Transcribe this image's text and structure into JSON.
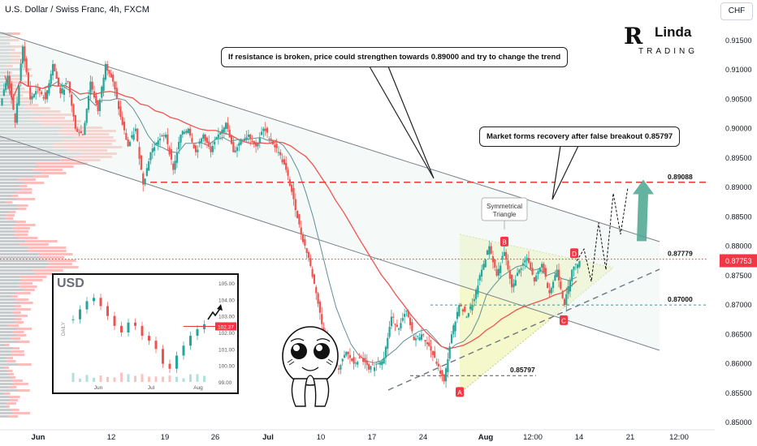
{
  "header": {
    "symbol_title": "U.S. Dollar / Swiss Franc, 4h, FXCM",
    "currency_badge": "CHF"
  },
  "logo": {
    "mark": "R",
    "word": "Linda",
    "sub": "TRADING"
  },
  "callouts": {
    "resistance": "If resistance is broken, price could strengthen towards 0.89000 and try to change the trend",
    "recovery": "Market forms recovery after false breakout 0.85797"
  },
  "annotations": {
    "triangle": [
      "Symmetrical",
      "Triangle"
    ],
    "point_a": "A",
    "point_b": "B",
    "point_c": "C",
    "point_d": "D"
  },
  "inset": {
    "title": "USD",
    "y_ticks": [
      "105.00",
      "104.00",
      "103.00",
      "102.00",
      "101.00",
      "100.00",
      "99.00"
    ],
    "x_ticks": [
      "Jun",
      "Jul",
      "Aug"
    ],
    "last_label": "102.37",
    "vertical_tag": "DAILY"
  },
  "colors": {
    "up": "#26a69a",
    "down": "#ef5350",
    "level": "#e53935",
    "ma_fast": "#5f8f96",
    "ma_slow": "#ef5350",
    "price_tag": "#f23645",
    "target_arrow": "#4aa58f",
    "triangle_fill": "#f3f7c4"
  },
  "chart_data": {
    "type": "candlestick",
    "title": "U.S. Dollar / Swiss Franc, 4h, FXCM",
    "x_ticks": [
      "Jun",
      "12",
      "19",
      "26",
      "Jul",
      "10",
      "17",
      "24",
      "Aug",
      "12:00",
      "14",
      "21",
      "12:00"
    ],
    "y_ticks": [
      "0.91500",
      "0.91000",
      "0.90500",
      "0.90000",
      "0.89500",
      "0.89000",
      "0.88500",
      "0.88000",
      "0.87500",
      "0.87000",
      "0.86500",
      "0.86000",
      "0.85500",
      "0.85000"
    ],
    "ylim": [
      0.85,
      0.918
    ],
    "current_price": "0.87753",
    "levels": [
      {
        "label": "0.89088",
        "value": 0.89088,
        "style": "dashed-red"
      },
      {
        "label": "0.87779",
        "value": 0.87779,
        "style": "dotted-red"
      },
      {
        "label": "0.87000",
        "value": 0.87,
        "style": "dashed-teal"
      },
      {
        "label": "0.85797",
        "value": 0.85797,
        "style": "dashed-gray"
      }
    ],
    "price_path": [
      [
        0.904,
        0.909
      ],
      [
        0.909,
        0.901
      ],
      [
        0.901,
        0.914
      ],
      [
        0.914,
        0.905
      ],
      [
        0.905,
        0.907
      ],
      [
        0.907,
        0.905
      ],
      [
        0.905,
        0.911
      ],
      [
        0.911,
        0.906
      ],
      [
        0.906,
        0.908
      ],
      [
        0.908,
        0.9
      ],
      [
        0.9,
        0.899
      ],
      [
        0.899,
        0.908
      ],
      [
        0.908,
        0.903
      ],
      [
        0.903,
        0.911
      ],
      [
        0.911,
        0.908
      ],
      [
        0.908,
        0.902
      ],
      [
        0.902,
        0.897
      ],
      [
        0.897,
        0.9
      ],
      [
        0.9,
        0.8905
      ],
      [
        0.8905,
        0.896
      ],
      [
        0.896,
        0.898
      ],
      [
        0.898,
        0.899
      ],
      [
        0.899,
        0.893
      ],
      [
        0.893,
        0.899
      ],
      [
        0.899,
        0.9
      ],
      [
        0.9,
        0.896
      ],
      [
        0.896,
        0.899
      ],
      [
        0.899,
        0.896
      ],
      [
        0.896,
        0.899
      ],
      [
        0.899,
        0.901
      ],
      [
        0.901,
        0.896
      ],
      [
        0.896,
        0.898
      ],
      [
        0.898,
        0.899
      ],
      [
        0.899,
        0.897
      ],
      [
        0.897,
        0.9
      ],
      [
        0.9,
        0.898
      ],
      [
        0.898,
        0.896
      ],
      [
        0.896,
        0.893
      ],
      [
        0.893,
        0.888
      ],
      [
        0.888,
        0.882
      ],
      [
        0.882,
        0.878
      ],
      [
        0.878,
        0.872
      ],
      [
        0.872,
        0.865
      ],
      [
        0.865,
        0.862
      ],
      [
        0.862,
        0.859
      ],
      [
        0.859,
        0.862
      ],
      [
        0.862,
        0.86
      ],
      [
        0.86,
        0.861
      ],
      [
        0.861,
        0.859
      ],
      [
        0.859,
        0.86
      ],
      [
        0.86,
        0.861
      ],
      [
        0.861,
        0.868
      ],
      [
        0.868,
        0.866
      ],
      [
        0.866,
        0.869
      ],
      [
        0.869,
        0.864
      ],
      [
        0.864,
        0.865
      ],
      [
        0.865,
        0.863
      ],
      [
        0.863,
        0.86
      ],
      [
        0.86,
        0.857
      ],
      [
        0.857,
        0.865
      ],
      [
        0.865,
        0.87
      ],
      [
        0.87,
        0.868
      ],
      [
        0.868,
        0.871
      ],
      [
        0.871,
        0.876
      ],
      [
        0.876,
        0.88
      ],
      [
        0.88,
        0.875
      ],
      [
        0.875,
        0.879
      ],
      [
        0.879,
        0.873
      ],
      [
        0.873,
        0.876
      ],
      [
        0.876,
        0.878
      ],
      [
        0.878,
        0.874
      ],
      [
        0.874,
        0.877
      ],
      [
        0.877,
        0.872
      ],
      [
        0.872,
        0.876
      ],
      [
        0.876,
        0.87
      ],
      [
        0.87,
        0.876
      ],
      [
        0.876,
        0.8775
      ]
    ],
    "projection_path": [
      0.8775,
      0.8795,
      0.874,
      0.884,
      0.876,
      0.889,
      0.882,
      0.89
    ],
    "target_arrow": {
      "from": 0.885,
      "to": 0.8905
    }
  }
}
